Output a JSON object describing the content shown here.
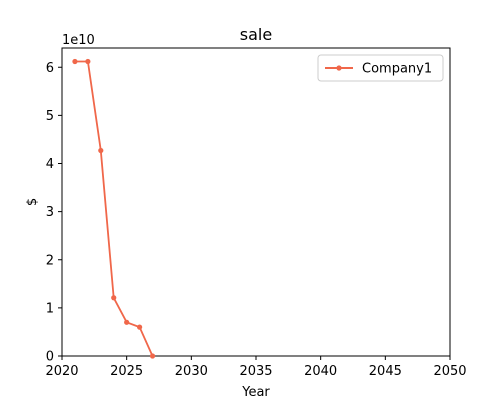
{
  "chart_data": {
    "type": "line",
    "title": "sale",
    "xlabel": "Year",
    "ylabel": "$",
    "y_exponent_label": "1e10",
    "y_multiplier": 10000000000,
    "xlim": [
      2020,
      2050
    ],
    "ylim": [
      0,
      6.4
    ],
    "x_ticks": [
      2020,
      2025,
      2030,
      2035,
      2040,
      2045,
      2050
    ],
    "y_ticks": [
      0,
      1,
      2,
      3,
      4,
      5,
      6
    ],
    "grid": false,
    "legend_position": "top-right",
    "series": [
      {
        "name": "Company1",
        "color": "#f0674a",
        "marker": "circle",
        "x": [
          2021,
          2022,
          2023,
          2024,
          2025,
          2026,
          2027
        ],
        "y": [
          6.12,
          6.12,
          4.27,
          1.21,
          0.7,
          0.6,
          0.0
        ]
      }
    ]
  }
}
